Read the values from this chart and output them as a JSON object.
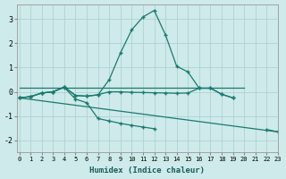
{
  "xlabel": "Humidex (Indice chaleur)",
  "background_color": "#ceeaea",
  "grid_color": "#aacece",
  "line_color": "#1a7a6e",
  "x_values": [
    0,
    1,
    2,
    3,
    4,
    5,
    6,
    7,
    8,
    9,
    10,
    11,
    12,
    13,
    14,
    15,
    16,
    17,
    18,
    19,
    20,
    21,
    22,
    23
  ],
  "line1_y": [
    -0.25,
    -0.2,
    -0.05,
    0.0,
    0.2,
    -0.15,
    -0.18,
    -0.13,
    0.5,
    1.6,
    2.55,
    3.08,
    3.35,
    2.35,
    1.05,
    0.82,
    0.15,
    0.15,
    -0.1,
    -0.25,
    null,
    null,
    null,
    null
  ],
  "line2_y": [
    -0.25,
    -0.2,
    -0.05,
    0.0,
    0.2,
    -0.15,
    -0.18,
    -0.12,
    0.0,
    0.0,
    -0.02,
    -0.03,
    -0.04,
    -0.05,
    -0.06,
    -0.05,
    0.15,
    0.15,
    -0.1,
    -0.25,
    null,
    null,
    null,
    null
  ],
  "line3_hline_x": [
    0,
    20
  ],
  "line3_hline_y": [
    0.15,
    0.15
  ],
  "line4_y": [
    -0.25,
    -0.2,
    -0.05,
    0.0,
    0.18,
    -0.3,
    -0.45,
    -1.1,
    -1.2,
    -1.3,
    -1.38,
    -1.45,
    -1.52,
    null,
    null,
    null,
    null,
    null,
    null,
    null,
    null,
    null,
    null,
    null
  ],
  "line5_y": [
    null,
    null,
    null,
    null,
    null,
    null,
    null,
    null,
    null,
    null,
    null,
    null,
    null,
    null,
    null,
    null,
    null,
    null,
    null,
    null,
    null,
    null,
    -1.55,
    -1.65
  ],
  "xlim": [
    -0.2,
    23
  ],
  "ylim": [
    -2.5,
    3.6
  ],
  "yticks": [
    -2,
    -1,
    0,
    1,
    2,
    3
  ],
  "xticks": [
    0,
    1,
    2,
    3,
    4,
    5,
    6,
    7,
    8,
    9,
    10,
    11,
    12,
    13,
    14,
    15,
    16,
    17,
    18,
    19,
    20,
    21,
    22,
    23
  ]
}
